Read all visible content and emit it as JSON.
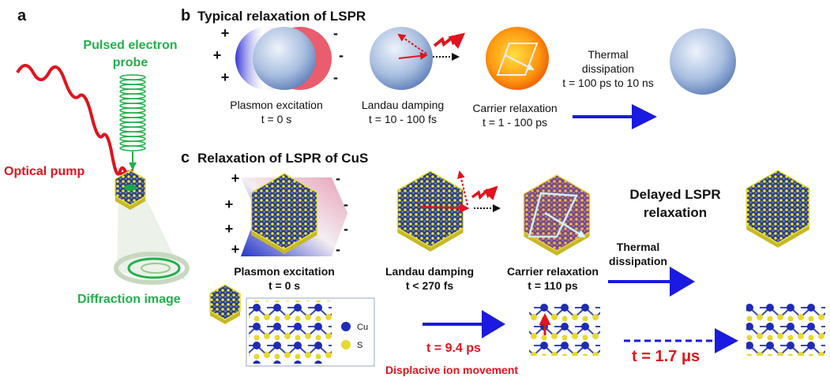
{
  "panels": {
    "a": {
      "label": "a",
      "probe": [
        "Pulsed electron",
        "probe"
      ],
      "pump": "Optical pump",
      "diffraction": "Diffraction image"
    },
    "b": {
      "label": "b",
      "title": "Typical relaxation of LSPR",
      "charges": {
        "plus": "+",
        "minus": "-"
      },
      "steps": [
        {
          "name": "Plasmon excitation",
          "time": "t  = 0 s"
        },
        {
          "name": "Landau damping",
          "time": "t = 10 - 100 fs"
        },
        {
          "name": "Carrier relaxation",
          "time": "t = 1 - 100 ps"
        }
      ],
      "thermal": {
        "name": [
          "Thermal",
          "dissipation"
        ],
        "time": "t = 100 ps to 10 ns"
      }
    },
    "c": {
      "label": "c",
      "title": "Relaxation of LSPR of CuS",
      "steps": [
        {
          "name": "Plasmon excitation",
          "time": "t  = 0 s"
        },
        {
          "name": "Landau damping",
          "time": "t < 270 fs"
        },
        {
          "name": "Carrier relaxation",
          "time": "t = 110 ps"
        }
      ],
      "delayed": [
        "Delayed LSPR",
        "relaxation"
      ],
      "thermal": [
        "Thermal",
        "dissipation"
      ],
      "legend": {
        "cu": "Cu",
        "s": "S"
      },
      "ion": {
        "time": "t = 9.4 ps",
        "label": "Displacive ion movement"
      },
      "slow": "t = 1.7 μs"
    }
  }
}
